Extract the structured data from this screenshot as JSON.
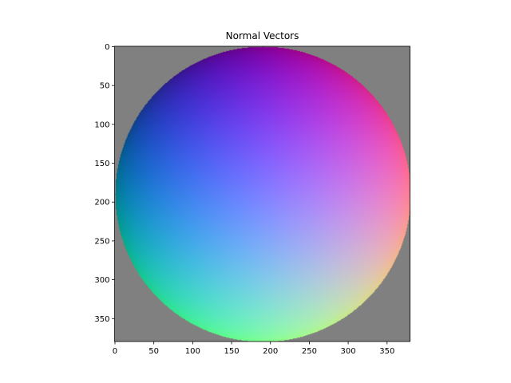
{
  "chart_data": {
    "type": "heatmap",
    "title": "Normal Vectors",
    "xlabel": "",
    "ylabel": "",
    "image_width": 380,
    "image_height": 380,
    "xlim": [
      -0.5,
      379.5
    ],
    "ylim": [
      379.5,
      -0.5
    ],
    "x_ticks": [
      0,
      50,
      100,
      150,
      200,
      250,
      300,
      350
    ],
    "y_ticks": [
      0,
      50,
      100,
      150,
      200,
      250,
      300,
      350
    ],
    "x_tick_labels": [
      "0",
      "50",
      "100",
      "150",
      "200",
      "250",
      "300",
      "350"
    ],
    "y_tick_labels": [
      "0",
      "50",
      "100",
      "150",
      "200",
      "250",
      "300",
      "350"
    ],
    "grid": false,
    "content": "normal map of a sphere",
    "sphere_center": [
      190,
      190
    ],
    "sphere_radius": 190,
    "colors": {
      "background": "#808080",
      "top": "#7f00a0",
      "left": "#0072a5",
      "right": "#ff6aa3",
      "bottom": "#80ff9f",
      "center": "#7f7fff"
    }
  }
}
